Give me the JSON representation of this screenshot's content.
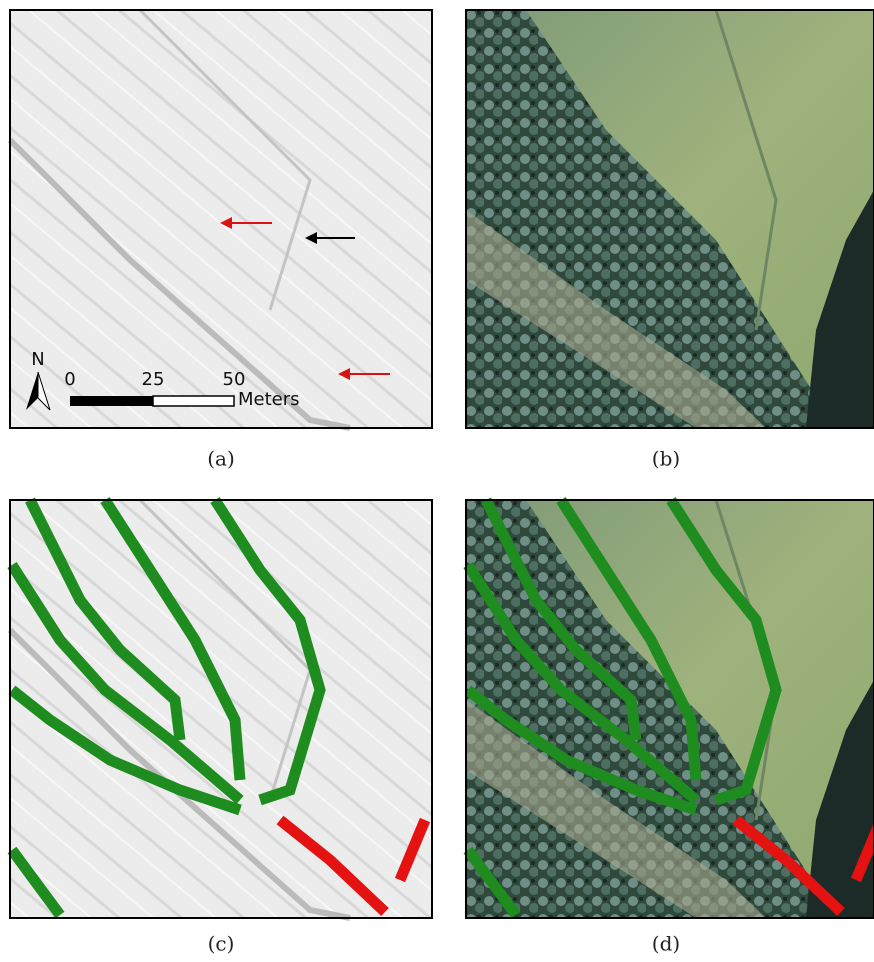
{
  "panels": [
    {
      "label": "(a)"
    },
    {
      "label": "(b)"
    },
    {
      "label": "(c)"
    },
    {
      "label": "(d)"
    }
  ],
  "north_label": "N",
  "scale_bar": {
    "ticks": [
      0,
      25,
      50
    ],
    "unit": "Meters"
  }
}
